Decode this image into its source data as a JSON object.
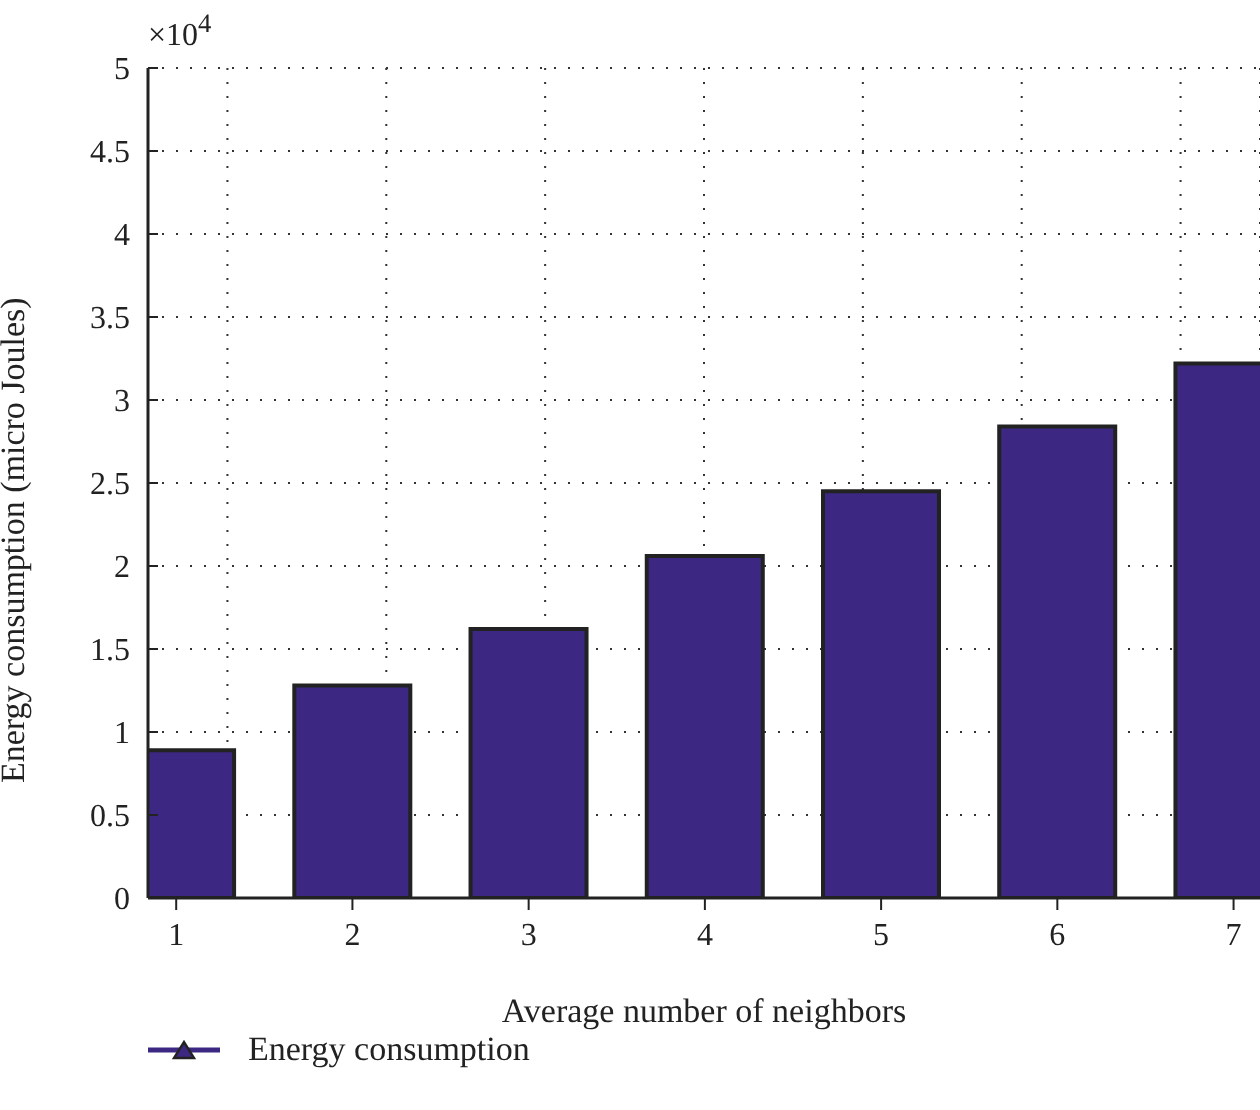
{
  "chart_data": {
    "type": "bar",
    "xlabel": "Average number of neighbors",
    "ylabel": "Energy consumption (micro Joules)",
    "annotations": [
      "×10$^{4}$"
    ],
    "x": [
      1,
      2,
      3,
      4,
      5,
      6,
      7
    ],
    "series": [
      {
        "name": "Energy consumption",
        "color": "#3c2882",
        "values": [
          0.89,
          1.28,
          1.62,
          2.06,
          2.45,
          2.84,
          3.22
        ]
      }
    ],
    "xlim": [
      0.84,
      7.15
    ],
    "xticks": [
      1,
      2,
      3,
      4,
      5,
      6,
      7
    ],
    "ylim": [
      0,
      5
    ],
    "yticks": [
      0,
      0.5,
      1,
      1.5,
      2,
      2.5,
      3,
      3.5,
      4,
      4.5,
      5
    ],
    "grid": true,
    "legend": "bottom"
  }
}
